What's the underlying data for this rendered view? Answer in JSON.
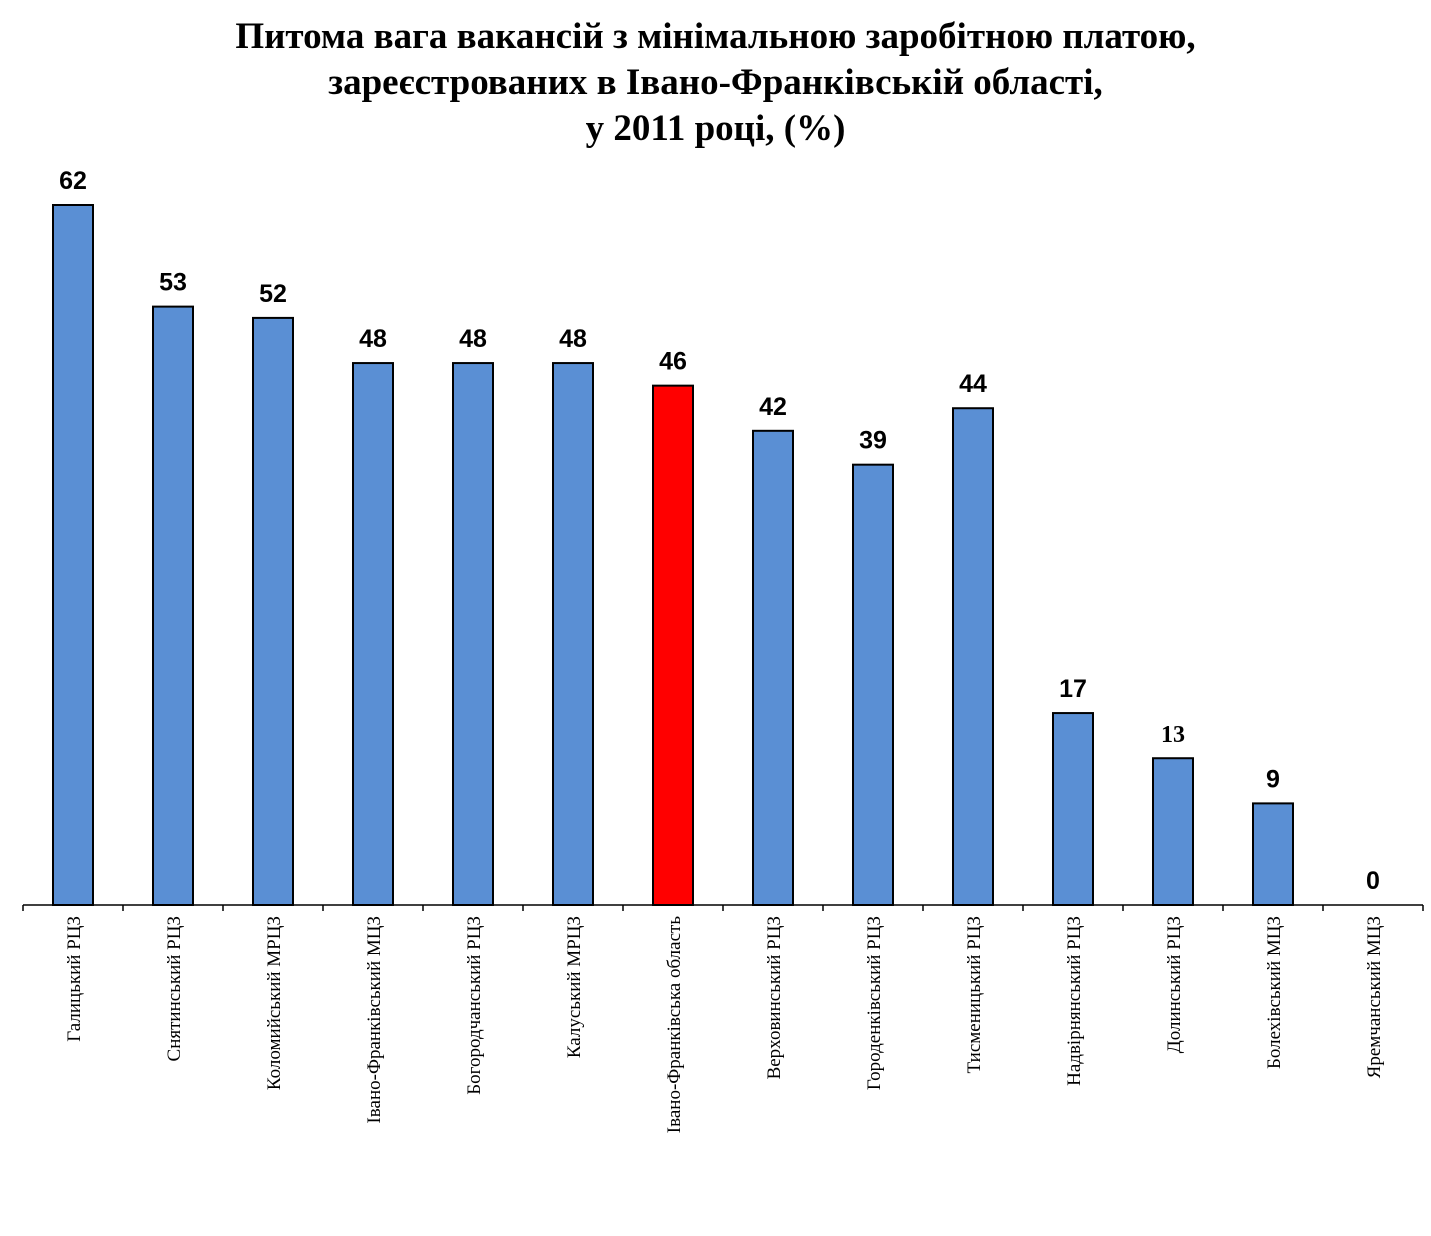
{
  "title_lines": [
    "Питома вага вакансій з мінімальною заробітною платою,",
    "зареєстрованих в Івано-Франківській області,",
    "у 2011 році, (%)"
  ],
  "chart_data": {
    "type": "bar",
    "title": "Питома вага вакансій з мінімальною заробітною платою, зареєстрованих в Івано-Франківській області, у 2011 році, (%)",
    "categories": [
      "Галицький РЦЗ",
      "Снятинський РЦЗ",
      "Коломийський МРЦЗ",
      "Івано-Франківський МЦЗ",
      "Богородчанський РЦЗ",
      "Калуський МРЦЗ",
      "Івано-Франківська область",
      "Верховинський РЦЗ",
      "Городенківський РЦЗ",
      "Тисменицький РЦЗ",
      "Надвірнянський РЦЗ",
      "Долинський РЦЗ",
      "Болехівський МЦЗ",
      "Яремчанський МЦЗ"
    ],
    "values": [
      62,
      53,
      52,
      48,
      48,
      48,
      46,
      42,
      39,
      44,
      17,
      13,
      9,
      0
    ],
    "data_labels": [
      "62",
      "53",
      "52",
      "48",
      "48",
      "48",
      "46",
      "42",
      "39",
      "44",
      "17",
      "13",
      "9",
      "0"
    ],
    "highlight_index": 6,
    "colors": {
      "bar": "#5A8FD4",
      "highlight": "#FF0000",
      "outline": "#000000",
      "axis": "#000000"
    },
    "ylim": [
      0,
      62
    ],
    "grid": false,
    "legend": "none",
    "xlabel": "",
    "ylabel": ""
  }
}
